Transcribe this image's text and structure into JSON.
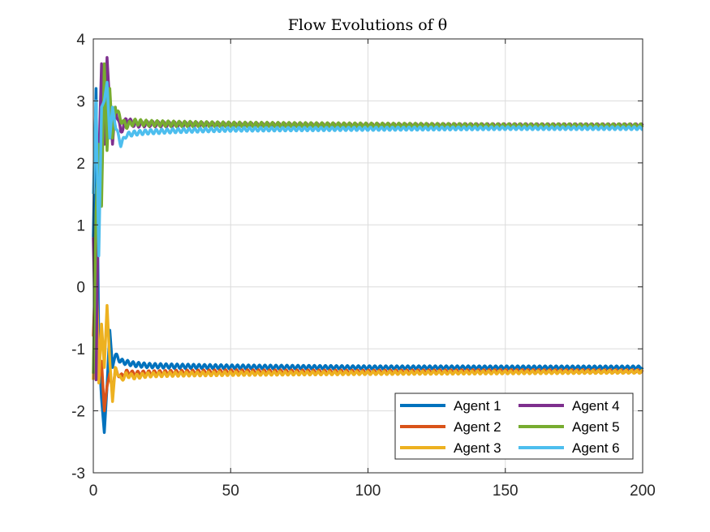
{
  "chart_data": {
    "type": "line",
    "title": "Flow Evolutions of θ",
    "xlabel": "",
    "ylabel": "",
    "xlim": [
      0,
      200
    ],
    "ylim": [
      -3,
      4
    ],
    "xticks": [
      "0",
      "50",
      "100",
      "150",
      "200"
    ],
    "yticks": [
      "-3",
      "-2",
      "-1",
      "0",
      "1",
      "2",
      "3",
      "4"
    ],
    "grid": true,
    "legend": {
      "placement": "bottom-right",
      "columns": 2
    },
    "series": [
      {
        "name": "Agent 1",
        "color": "#0072BD",
        "x": [
          0,
          1,
          2,
          3,
          4,
          5,
          6,
          7,
          8,
          10,
          12,
          15,
          20,
          30,
          50,
          100,
          150,
          200
        ],
        "y": [
          0.8,
          3.2,
          -1.0,
          -1.8,
          -2.35,
          -1.6,
          -0.7,
          -1.3,
          -1.1,
          -1.2,
          -1.22,
          -1.25,
          -1.27,
          -1.28,
          -1.29,
          -1.3,
          -1.3,
          -1.3
        ],
        "osc_amp": 0.04,
        "osc_period": 2.0
      },
      {
        "name": "Agent 2",
        "color": "#D95319",
        "x": [
          0,
          1,
          2,
          3,
          4,
          5,
          6,
          7,
          8,
          10,
          12,
          15,
          20,
          30,
          50,
          100,
          150,
          200
        ],
        "y": [
          -0.8,
          0.5,
          -1.5,
          -1.2,
          -2.0,
          -1.6,
          -1.4,
          -1.7,
          -1.35,
          -1.45,
          -1.38,
          -1.4,
          -1.39,
          -1.38,
          -1.37,
          -1.37,
          -1.36,
          -1.36
        ],
        "osc_amp": 0.04,
        "osc_period": 2.0
      },
      {
        "name": "Agent 3",
        "color": "#EDB120",
        "x": [
          0,
          1,
          2,
          3,
          4,
          5,
          6,
          7,
          8,
          10,
          12,
          15,
          20,
          30,
          50,
          100,
          150,
          200
        ],
        "y": [
          -1.5,
          0.7,
          -1.55,
          -0.6,
          -1.3,
          -0.3,
          -1.2,
          -1.85,
          -1.3,
          -1.5,
          -1.42,
          -1.45,
          -1.42,
          -1.41,
          -1.4,
          -1.39,
          -1.38,
          -1.37
        ],
        "osc_amp": 0.04,
        "osc_period": 2.0
      },
      {
        "name": "Agent 4",
        "color": "#7E2F8E",
        "x": [
          0,
          1,
          2,
          3,
          4,
          5,
          6,
          7,
          8,
          10,
          12,
          15,
          20,
          30,
          50,
          100,
          150,
          200
        ],
        "y": [
          0.8,
          -1.5,
          2.0,
          3.6,
          2.3,
          3.7,
          2.9,
          2.3,
          2.9,
          2.5,
          2.7,
          2.62,
          2.63,
          2.62,
          2.61,
          2.6,
          2.6,
          2.6
        ],
        "osc_amp": 0.05,
        "osc_period": 2.0
      },
      {
        "name": "Agent 5",
        "color": "#77AC30",
        "x": [
          0,
          1,
          2,
          3,
          4,
          5,
          6,
          7,
          8,
          10,
          12,
          15,
          20,
          30,
          50,
          100,
          150,
          200
        ],
        "y": [
          -1.4,
          1.2,
          2.3,
          1.3,
          3.6,
          2.2,
          3.2,
          2.4,
          2.9,
          2.7,
          2.6,
          2.66,
          2.64,
          2.63,
          2.62,
          2.61,
          2.6,
          2.6
        ],
        "osc_amp": 0.05,
        "osc_period": 2.0
      },
      {
        "name": "Agent 6",
        "color": "#4DBEEE",
        "x": [
          0,
          1,
          2,
          3,
          4,
          5,
          6,
          7,
          8,
          10,
          12,
          15,
          20,
          30,
          50,
          100,
          150,
          200
        ],
        "y": [
          1.5,
          3.0,
          0.5,
          2.9,
          3.0,
          3.3,
          2.4,
          2.9,
          2.6,
          2.3,
          2.45,
          2.48,
          2.5,
          2.52,
          2.54,
          2.55,
          2.56,
          2.56
        ],
        "osc_amp": 0.04,
        "osc_period": 2.0
      }
    ]
  }
}
